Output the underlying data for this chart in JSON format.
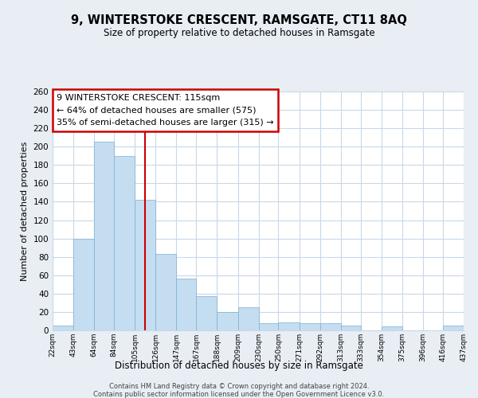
{
  "title1": "9, WINTERSTOKE CRESCENT, RAMSGATE, CT11 8AQ",
  "title2": "Size of property relative to detached houses in Ramsgate",
  "xlabel": "Distribution of detached houses by size in Ramsgate",
  "ylabel": "Number of detached properties",
  "bar_color": "#c5ddf0",
  "bar_edge_color": "#7ab0d4",
  "bins": [
    22,
    43,
    64,
    84,
    105,
    126,
    147,
    167,
    188,
    209,
    230,
    250,
    271,
    292,
    313,
    333,
    354,
    375,
    396,
    416,
    437
  ],
  "counts": [
    5,
    100,
    205,
    190,
    142,
    83,
    56,
    37,
    20,
    25,
    8,
    9,
    8,
    8,
    5,
    0,
    4,
    0,
    0,
    5
  ],
  "tick_labels": [
    "22sqm",
    "43sqm",
    "64sqm",
    "84sqm",
    "105sqm",
    "126sqm",
    "147sqm",
    "167sqm",
    "188sqm",
    "209sqm",
    "230sqm",
    "250sqm",
    "271sqm",
    "292sqm",
    "313sqm",
    "333sqm",
    "354sqm",
    "375sqm",
    "396sqm",
    "416sqm",
    "437sqm"
  ],
  "ylim": [
    0,
    260
  ],
  "yticks": [
    0,
    20,
    40,
    60,
    80,
    100,
    120,
    140,
    160,
    180,
    200,
    220,
    240,
    260
  ],
  "vline_x": 115,
  "vline_color": "#cc0000",
  "annotation_line1": "9 WINTERSTOKE CRESCENT: 115sqm",
  "annotation_line2": "← 64% of detached houses are smaller (575)",
  "annotation_line3": "35% of semi-detached houses are larger (315) →",
  "annotation_box_color": "white",
  "annotation_box_edge_color": "#cc0000",
  "footer1": "Contains HM Land Registry data © Crown copyright and database right 2024.",
  "footer2": "Contains public sector information licensed under the Open Government Licence v3.0.",
  "bg_color": "#e8eef4",
  "plot_bg_color": "white",
  "grid_color": "#c8d8e8"
}
